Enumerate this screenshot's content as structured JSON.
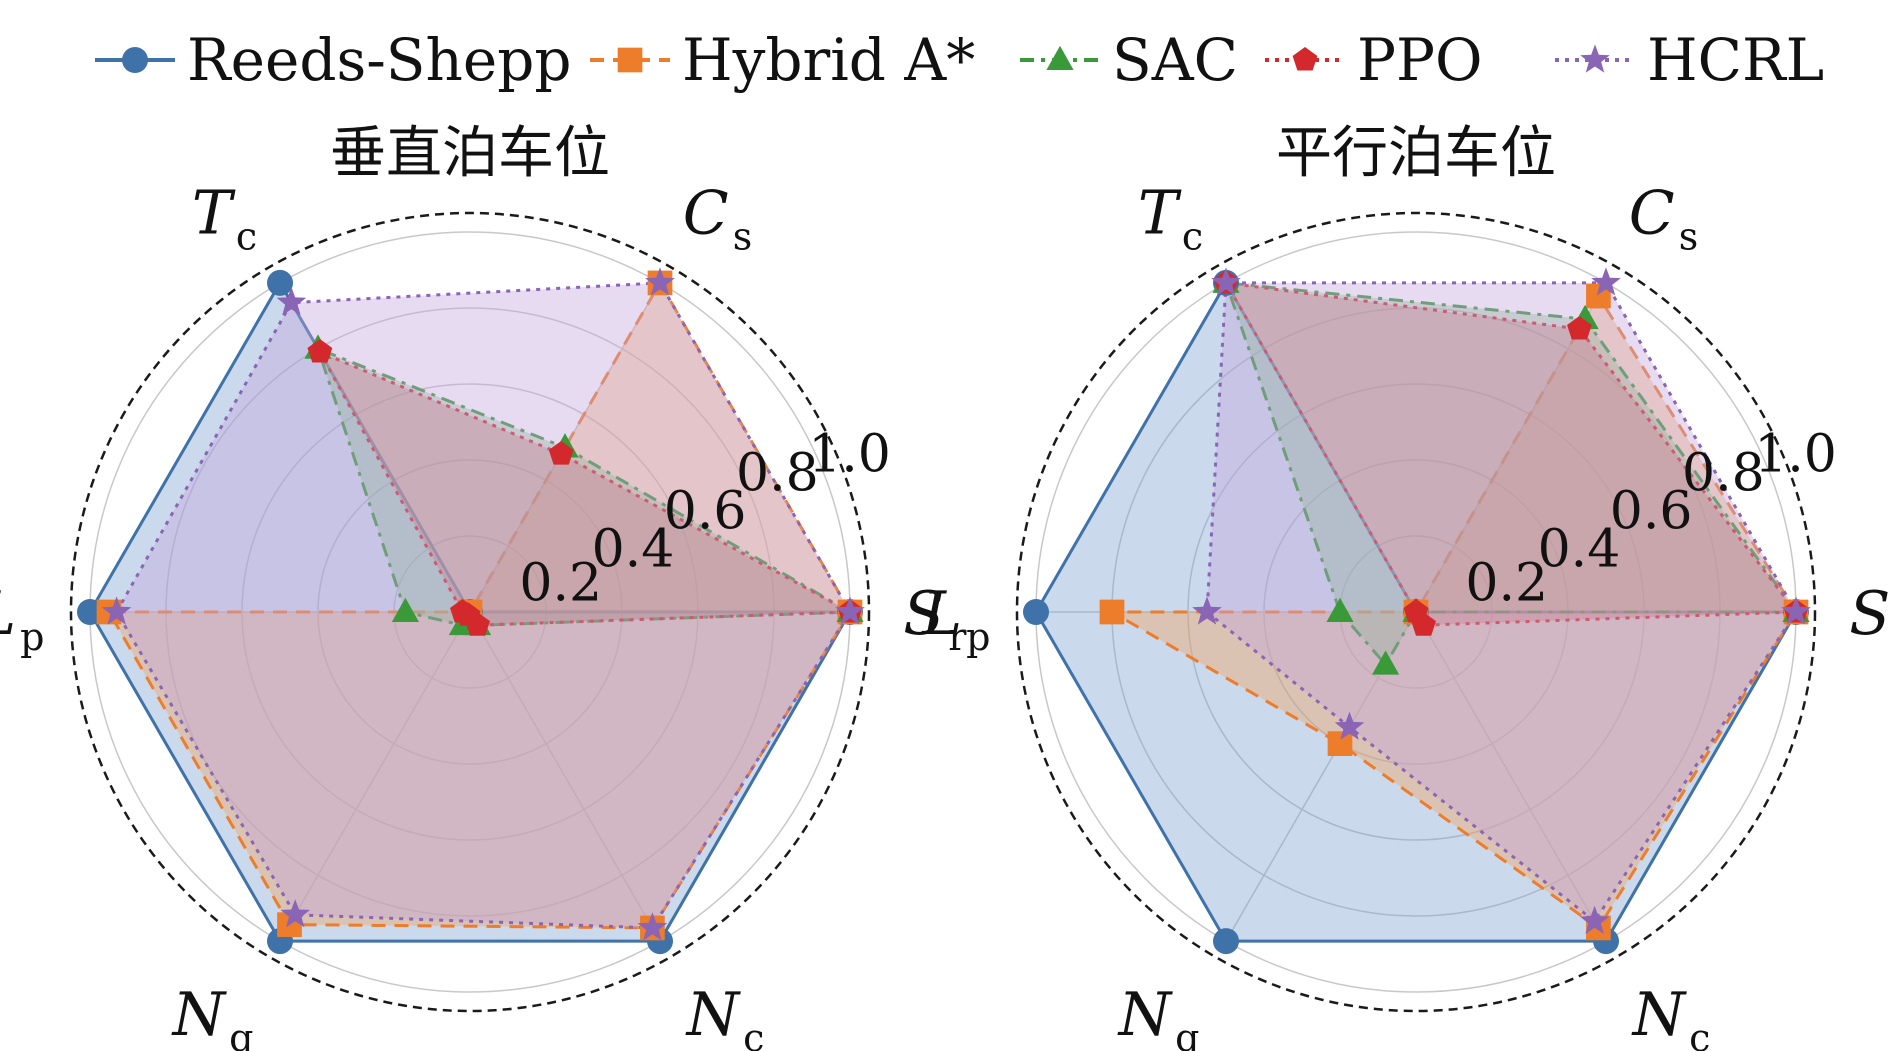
{
  "chart_data": {
    "type": "radar",
    "axes": [
      {
        "key": "Sr",
        "main": "S",
        "sub": "r"
      },
      {
        "key": "Cs",
        "main": "C",
        "sub": "s"
      },
      {
        "key": "Tc",
        "main": "T",
        "sub": "c"
      },
      {
        "key": "Lp",
        "main": "L",
        "sub": "p"
      },
      {
        "key": "Ng",
        "main": "N",
        "sub": "g"
      },
      {
        "key": "Nc",
        "main": "N",
        "sub": "c"
      }
    ],
    "radial_ticks": [
      "0.2",
      "0.4",
      "0.6",
      "0.8",
      "1.0"
    ],
    "rlim": [
      0,
      1.0
    ],
    "grid": true,
    "legend_position": "top",
    "series_styles": [
      {
        "name": "Reeds-Shepp",
        "color": "#3f72a8",
        "fill": "#7b9fcf",
        "marker": "circle",
        "dash": "solid"
      },
      {
        "name": "Hybrid A*",
        "color": "#ee7d2b",
        "fill": "#f4a35e",
        "marker": "square",
        "dash": "dashed"
      },
      {
        "name": "SAC",
        "color": "#3a9a3a",
        "fill": "#7cc07c",
        "marker": "triangle",
        "dash": "dashdot"
      },
      {
        "name": "PPO",
        "color": "#d3292c",
        "fill": "#d06868",
        "marker": "pentagon",
        "dash": "dotted"
      },
      {
        "name": "HCRL",
        "color": "#8a64b5",
        "fill": "#c3a4dc",
        "marker": "star",
        "dash": "dotted"
      }
    ],
    "panels": [
      {
        "title": "垂直泊车位",
        "series": [
          {
            "name": "Reeds-Shepp",
            "values": [
              1.0,
              0.0,
              1.0,
              1.0,
              1.0,
              1.0
            ]
          },
          {
            "name": "Hybrid A*",
            "values": [
              1.0,
              1.0,
              0.0,
              0.95,
              0.95,
              0.96
            ]
          },
          {
            "name": "SAC",
            "values": [
              1.0,
              0.5,
              0.8,
              0.17,
              0.04,
              0.04
            ]
          },
          {
            "name": "PPO",
            "values": [
              1.0,
              0.48,
              0.79,
              0.02,
              0.01,
              0.04
            ]
          },
          {
            "name": "HCRL",
            "values": [
              1.0,
              1.0,
              0.94,
              0.93,
              0.92,
              0.96
            ]
          }
        ]
      },
      {
        "title": "平行泊车位",
        "series": [
          {
            "name": "Reeds-Shepp",
            "values": [
              1.0,
              0.0,
              1.0,
              1.0,
              1.0,
              1.0
            ]
          },
          {
            "name": "Hybrid A*",
            "values": [
              1.0,
              0.96,
              0.0,
              0.8,
              0.4,
              0.96
            ]
          },
          {
            "name": "SAC",
            "values": [
              1.0,
              0.89,
              1.0,
              0.2,
              0.16,
              0.0
            ]
          },
          {
            "name": "PPO",
            "values": [
              1.0,
              0.86,
              1.0,
              0.0,
              0.0,
              0.04
            ]
          },
          {
            "name": "HCRL",
            "values": [
              1.0,
              1.0,
              1.0,
              0.55,
              0.35,
              0.94
            ]
          }
        ]
      }
    ]
  }
}
